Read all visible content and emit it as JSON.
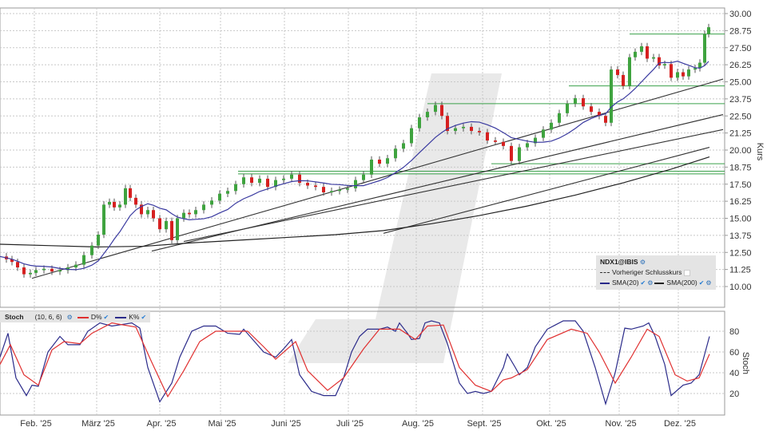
{
  "chart_data": [
    {
      "type": "candlestick",
      "title": "NDX1@IBIS",
      "ylabel": "Kurs",
      "ylim": [
        8.75,
        30.6
      ],
      "yticks": [
        "30.00",
        "28.75",
        "27.50",
        "26.25",
        "25.00",
        "23.75",
        "22.50",
        "21.25",
        "20.00",
        "18.75",
        "17.50",
        "16.25",
        "15.00",
        "13.75",
        "12.50",
        "11.25",
        "10.00"
      ],
      "xticks": [
        "Feb. '25",
        "März '25",
        "Apr. '25",
        "Mai '25",
        "Juni '25",
        "Juli '25",
        "Aug. '25",
        "Sept. '25",
        "Okt. '25",
        "Nov. '25",
        "Dez. '25"
      ],
      "close_path": [
        [
          0,
          12.2
        ],
        [
          8,
          12.0
        ],
        [
          15,
          11.8
        ],
        [
          22,
          11.4
        ],
        [
          30,
          10.9
        ],
        [
          38,
          11.0
        ],
        [
          45,
          11.2
        ],
        [
          55,
          11.3
        ],
        [
          65,
          11.1
        ],
        [
          75,
          11.2
        ],
        [
          85,
          11.4
        ],
        [
          95,
          11.6
        ],
        [
          105,
          12.3
        ],
        [
          115,
          13.0
        ],
        [
          123,
          13.8
        ],
        [
          130,
          16.0
        ],
        [
          137,
          16.2
        ],
        [
          143,
          15.8
        ],
        [
          150,
          16.0
        ],
        [
          157,
          17.2
        ],
        [
          163,
          16.5
        ],
        [
          170,
          16.0
        ],
        [
          177,
          15.3
        ],
        [
          185,
          15.6
        ],
        [
          192,
          15.0
        ],
        [
          200,
          14.2
        ],
        [
          208,
          14.8
        ],
        [
          215,
          13.4
        ],
        [
          222,
          15.0
        ],
        [
          230,
          15.4
        ],
        [
          237,
          15.3
        ],
        [
          245,
          15.6
        ],
        [
          255,
          16.0
        ],
        [
          265,
          16.3
        ],
        [
          275,
          16.8
        ],
        [
          285,
          17.0
        ],
        [
          295,
          17.5
        ],
        [
          305,
          18.0
        ],
        [
          315,
          17.6
        ],
        [
          325,
          17.9
        ],
        [
          335,
          17.3
        ],
        [
          345,
          17.8
        ],
        [
          355,
          17.9
        ],
        [
          365,
          18.2
        ],
        [
          375,
          17.6
        ],
        [
          385,
          17.4
        ],
        [
          395,
          17.3
        ],
        [
          405,
          16.9
        ],
        [
          415,
          17.0
        ],
        [
          425,
          17.1
        ],
        [
          435,
          17.2
        ],
        [
          445,
          17.8
        ],
        [
          455,
          18.2
        ],
        [
          465,
          19.3
        ],
        [
          475,
          19.0
        ],
        [
          485,
          19.4
        ],
        [
          495,
          20.1
        ],
        [
          505,
          20.5
        ],
        [
          515,
          21.6
        ],
        [
          525,
          22.4
        ],
        [
          535,
          22.8
        ],
        [
          545,
          23.3
        ],
        [
          553,
          22.5
        ],
        [
          560,
          21.4
        ],
        [
          570,
          21.6
        ],
        [
          580,
          21.7
        ],
        [
          590,
          21.4
        ],
        [
          600,
          21.3
        ],
        [
          610,
          20.7
        ],
        [
          620,
          20.6
        ],
        [
          630,
          20.3
        ],
        [
          640,
          19.2
        ],
        [
          650,
          20.2
        ],
        [
          660,
          20.5
        ],
        [
          670,
          20.9
        ],
        [
          680,
          21.5
        ],
        [
          690,
          22.0
        ],
        [
          700,
          22.7
        ],
        [
          710,
          23.4
        ],
        [
          720,
          23.8
        ],
        [
          730,
          23.2
        ],
        [
          740,
          22.8
        ],
        [
          750,
          22.5
        ],
        [
          758,
          22.0
        ],
        [
          765,
          25.9
        ],
        [
          773,
          25.5
        ],
        [
          780,
          24.7
        ],
        [
          788,
          26.8
        ],
        [
          795,
          27.2
        ],
        [
          803,
          27.6
        ],
        [
          810,
          26.7
        ],
        [
          818,
          26.8
        ],
        [
          825,
          26.2
        ],
        [
          832,
          26.3
        ],
        [
          840,
          25.3
        ],
        [
          848,
          25.7
        ],
        [
          855,
          25.4
        ],
        [
          862,
          25.9
        ],
        [
          870,
          26.0
        ],
        [
          876,
          26.4
        ],
        [
          882,
          28.5
        ],
        [
          887,
          29.0
        ]
      ],
      "series": [
        {
          "name": "SMA(20)",
          "color": "#3a3aa0"
        },
        {
          "name": "SMA(200)",
          "color": "#222222"
        },
        {
          "name": "Vorheriger Schlusskurs",
          "color": "#222222",
          "style": "dashed"
        }
      ],
      "horizontal_levels": [
        28.5,
        24.7,
        23.4,
        19.0,
        18.45,
        18.25
      ],
      "trend_lines": [
        {
          "from": [
            40,
            10.6
          ],
          "to": [
            905,
            25.2
          ]
        },
        {
          "from": [
            190,
            12.6
          ],
          "to": [
            905,
            22.6
          ]
        },
        {
          "from": [
            230,
            13.3
          ],
          "to": [
            905,
            21.5
          ]
        },
        {
          "from": [
            480,
            13.9
          ],
          "to": [
            888,
            20.2
          ]
        }
      ]
    },
    {
      "type": "line",
      "title": "Stoch (10, 6, 6)",
      "ylabel": "Stoch",
      "ylim": [
        0,
        100
      ],
      "yticks": [
        80,
        60,
        40,
        20
      ],
      "series": [
        {
          "name": "K%",
          "color": "#2b2b8a",
          "points": [
            [
              0,
              55
            ],
            [
              10,
              78
            ],
            [
              20,
              35
            ],
            [
              33,
              18
            ],
            [
              40,
              28
            ],
            [
              48,
              27
            ],
            [
              60,
              60
            ],
            [
              75,
              75
            ],
            [
              85,
              67
            ],
            [
              100,
              67
            ],
            [
              110,
              80
            ],
            [
              125,
              88
            ],
            [
              140,
              85
            ],
            [
              165,
              88
            ],
            [
              175,
              83
            ],
            [
              185,
              45
            ],
            [
              200,
              12
            ],
            [
              215,
              30
            ],
            [
              225,
              55
            ],
            [
              240,
              80
            ],
            [
              255,
              85
            ],
            [
              270,
              85
            ],
            [
              285,
              78
            ],
            [
              300,
              77
            ],
            [
              305,
              82
            ],
            [
              330,
              60
            ],
            [
              345,
              55
            ],
            [
              355,
              63
            ],
            [
              365,
              72
            ],
            [
              375,
              38
            ],
            [
              390,
              22
            ],
            [
              405,
              18
            ],
            [
              420,
              18
            ],
            [
              430,
              35
            ],
            [
              440,
              60
            ],
            [
              450,
              75
            ],
            [
              460,
              82
            ],
            [
              475,
              82
            ],
            [
              485,
              84
            ],
            [
              495,
              80
            ],
            [
              500,
              88
            ],
            [
              510,
              78
            ],
            [
              515,
              72
            ],
            [
              525,
              73
            ],
            [
              532,
              88
            ],
            [
              540,
              90
            ],
            [
              550,
              88
            ],
            [
              560,
              68
            ],
            [
              575,
              30
            ],
            [
              585,
              20
            ],
            [
              595,
              22
            ],
            [
              605,
              20
            ],
            [
              615,
              22
            ],
            [
              630,
              45
            ],
            [
              635,
              58
            ],
            [
              645,
              45
            ],
            [
              650,
              38
            ],
            [
              660,
              45
            ],
            [
              670,
              65
            ],
            [
              685,
              82
            ],
            [
              695,
              86
            ],
            [
              705,
              90
            ],
            [
              715,
              90
            ],
            [
              720,
              90
            ],
            [
              730,
              80
            ],
            [
              745,
              45
            ],
            [
              758,
              10
            ],
            [
              770,
              40
            ],
            [
              782,
              83
            ],
            [
              790,
              82
            ],
            [
              805,
              85
            ],
            [
              812,
              88
            ],
            [
              820,
              75
            ],
            [
              832,
              48
            ],
            [
              840,
              18
            ],
            [
              855,
              28
            ],
            [
              865,
              30
            ],
            [
              875,
              38
            ],
            [
              888,
              75
            ]
          ]
        },
        {
          "name": "D%",
          "color": "#e03030",
          "points": [
            [
              0,
              48
            ],
            [
              13,
              67
            ],
            [
              30,
              38
            ],
            [
              48,
              28
            ],
            [
              65,
              62
            ],
            [
              80,
              70
            ],
            [
              100,
              68
            ],
            [
              115,
              78
            ],
            [
              140,
              88
            ],
            [
              170,
              84
            ],
            [
              190,
              50
            ],
            [
              210,
              17
            ],
            [
              230,
              42
            ],
            [
              250,
              70
            ],
            [
              270,
              80
            ],
            [
              290,
              80
            ],
            [
              310,
              80
            ],
            [
              330,
              65
            ],
            [
              345,
              53
            ],
            [
              370,
              70
            ],
            [
              385,
              42
            ],
            [
              410,
              23
            ],
            [
              430,
              35
            ],
            [
              455,
              63
            ],
            [
              475,
              82
            ],
            [
              500,
              82
            ],
            [
              520,
              72
            ],
            [
              535,
              85
            ],
            [
              555,
              86
            ],
            [
              575,
              45
            ],
            [
              595,
              28
            ],
            [
              615,
              22
            ],
            [
              630,
              33
            ],
            [
              640,
              35
            ],
            [
              660,
              43
            ],
            [
              685,
              72
            ],
            [
              715,
              82
            ],
            [
              735,
              78
            ],
            [
              750,
              60
            ],
            [
              770,
              30
            ],
            [
              790,
              55
            ],
            [
              810,
              82
            ],
            [
              825,
              75
            ],
            [
              845,
              38
            ],
            [
              860,
              32
            ],
            [
              875,
              35
            ],
            [
              888,
              58
            ]
          ]
        }
      ]
    }
  ],
  "legend": {
    "title": "NDX1@IBIS",
    "prev_close_label": "Vorheriger Schlusskurs",
    "sma20_label": "SMA(20)",
    "sma200_label": "SMA(200)"
  },
  "stoch_header": {
    "name": "Stoch",
    "params": "(10, 6, 6)",
    "d_label": "D%",
    "k_label": "K%"
  },
  "colors": {
    "up": "#3fa33f",
    "down": "#d62020",
    "level": "#3aa04a",
    "grid": "#c8c8c8"
  }
}
